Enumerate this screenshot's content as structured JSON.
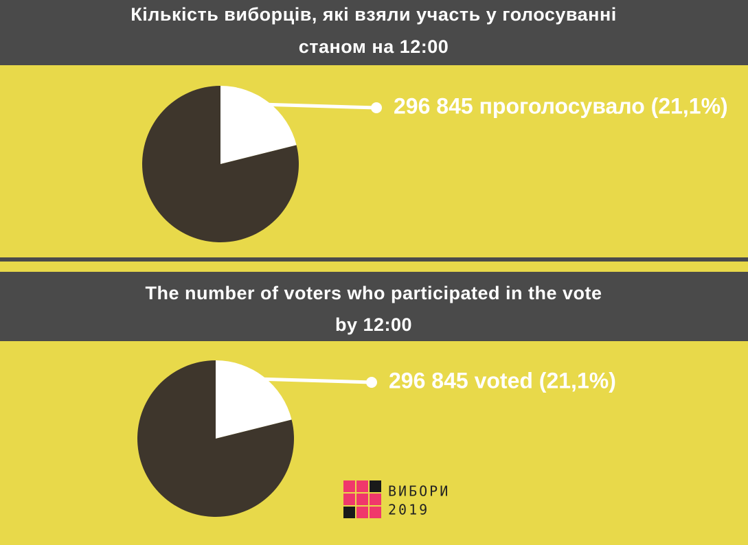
{
  "chart_data": [
    {
      "type": "pie",
      "title": "Кількість виборців, які взяли участь у голосуванні",
      "subtitle": "станом на 12:00",
      "values": [
        21.1,
        78.9
      ],
      "colors": [
        "#ffffff",
        "#3e362c"
      ],
      "annotation": "296 845 проголосувало (21,1%)"
    },
    {
      "type": "pie",
      "title": "The number of voters who participated in the vote",
      "subtitle": "by 12:00",
      "values": [
        21.1,
        78.9
      ],
      "colors": [
        "#ffffff",
        "#3e362c"
      ],
      "annotation": "296 845 voted (21,1%)"
    }
  ],
  "logo": {
    "name": "ВИБОРИ",
    "year": "2019"
  }
}
